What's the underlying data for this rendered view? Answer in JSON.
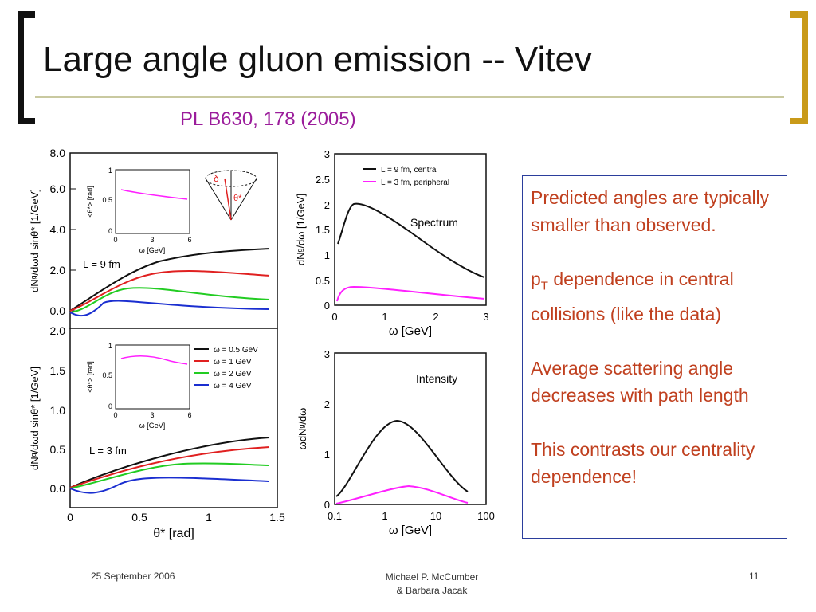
{
  "slide": {
    "title": "Large angle gluon emission -- Vitev",
    "subtitle": "PL B630, 178 (2005)",
    "bullets": [
      "Predicted angles are typically smaller than observed.",
      "dependence in central collisions (like the data)",
      "Average scattering angle decreases with path length",
      "This contrasts our centrality dependence!"
    ],
    "pt_base": "p",
    "pt_sub": "T",
    "footer_date": "25 September 2006",
    "footer_author_line1": "Michael P. McCumber",
    "footer_author_line2": "& Barbara Jacak",
    "page_number": "11"
  },
  "figure": {
    "left_top": {
      "y_ticks": [
        "0.0",
        "2.0",
        "4.0",
        "6.0",
        "8.0"
      ],
      "ylabel": "dNᵍ/dωd sinθ* [1/GeV]",
      "annotation": "L = 9 fm",
      "inset": {
        "yticks": [
          "0",
          "0.5",
          "1"
        ],
        "xticks": [
          "0",
          "3",
          "6"
        ],
        "ylabel": "<θ*> [rad]",
        "xlabel": "ω [GeV]"
      },
      "cone_labels": [
        "δ",
        "θ*"
      ]
    },
    "left_bottom": {
      "y_ticks": [
        "0.0",
        "0.5",
        "1.0",
        "1.5",
        "2.0"
      ],
      "ylabel": "dNᵍ/dωd sinθ* [1/GeV]",
      "annotation": "L = 3 fm",
      "inset": {
        "yticks": [
          "0",
          "0.5",
          "1"
        ],
        "xticks": [
          "0",
          "3",
          "6"
        ],
        "ylabel": "<θ*> [rad]",
        "xlabel": "ω [GeV]"
      },
      "legend": [
        "ω = 0.5 GeV",
        "ω = 1 GeV",
        "ω = 2 GeV",
        "ω = 4 GeV"
      ],
      "x_ticks": [
        "0",
        "0.5",
        "1",
        "1.5"
      ],
      "xlabel": "θ* [rad]"
    },
    "right_top": {
      "y_ticks": [
        "0",
        "0.5",
        "1",
        "1.5",
        "2",
        "2.5",
        "3"
      ],
      "x_ticks": [
        "0",
        "1",
        "2",
        "3"
      ],
      "ylabel": "dNᵍ/dω [1/GeV]",
      "xlabel": "ω [GeV]",
      "legend": [
        "L = 9 fm, central",
        "L = 3 fm, peripheral"
      ],
      "annotation": "Spectrum"
    },
    "right_bottom": {
      "y_ticks": [
        "0",
        "1",
        "2",
        "3"
      ],
      "x_ticks": [
        "0.1",
        "1",
        "10",
        "100"
      ],
      "ylabel": "ωdNᵍ/dω",
      "xlabel": "ω [GeV]",
      "annotation": "Intensity"
    },
    "colors": {
      "black": "#111111",
      "red": "#e02020",
      "green": "#22cc22",
      "blue": "#1a2ed0",
      "magenta": "#ff20ff"
    }
  }
}
